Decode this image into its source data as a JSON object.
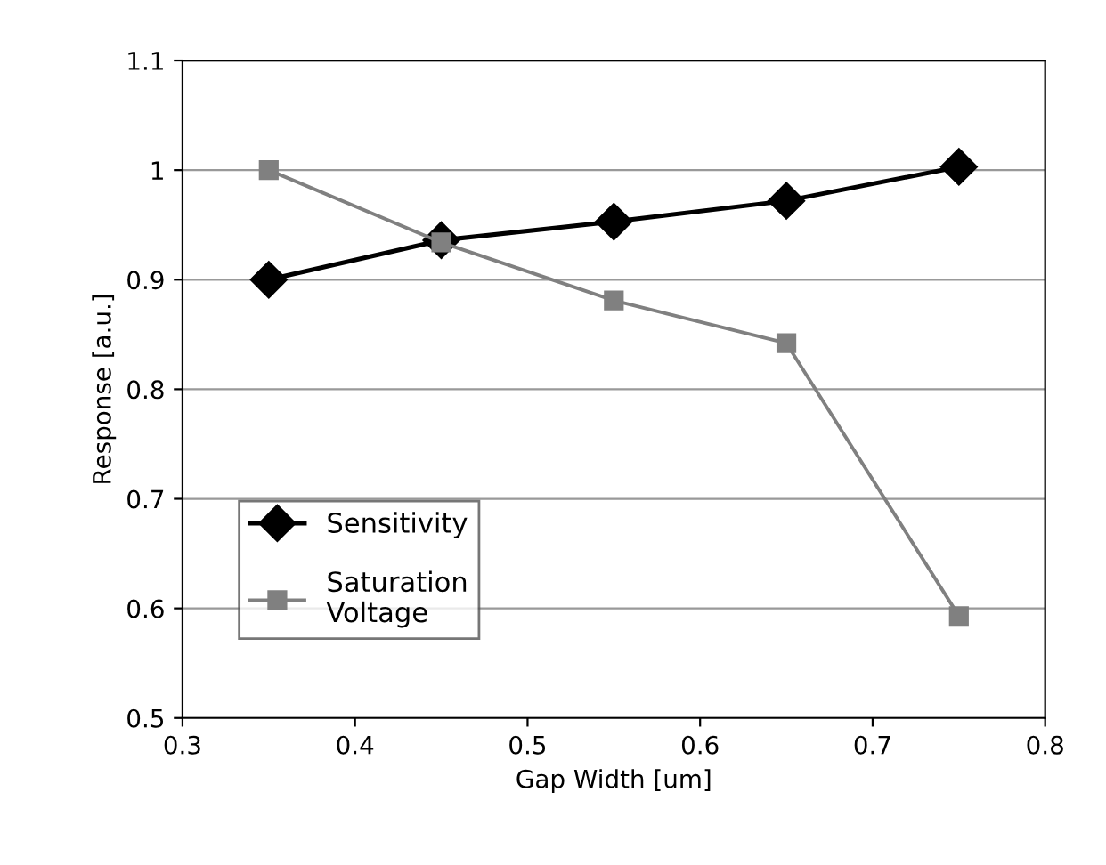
{
  "chart_data": {
    "type": "line",
    "xlabel": "Gap Width [um]",
    "ylabel": "Response [a.u.]",
    "x": [
      0.35,
      0.45,
      0.55,
      0.65,
      0.75
    ],
    "series": [
      {
        "name": "Sensitivity",
        "color": "#000000",
        "marker": "diamond",
        "values": [
          0.9,
          0.936,
          0.953,
          0.972,
          1.003
        ]
      },
      {
        "name": "Saturation\nVoltage",
        "color": "#808080",
        "marker": "square",
        "values": [
          1.0,
          0.934,
          0.881,
          0.842,
          0.593
        ]
      }
    ],
    "xlim": [
      0.3,
      0.8
    ],
    "xticks": [
      0.3,
      0.4,
      0.5,
      0.6,
      0.7,
      0.8
    ],
    "ylim": [
      0.5,
      1.1
    ],
    "yticks": [
      0.5,
      0.6,
      0.7,
      0.8,
      0.9,
      1,
      1.1
    ],
    "grid": "y",
    "legend": "bottom left"
  }
}
